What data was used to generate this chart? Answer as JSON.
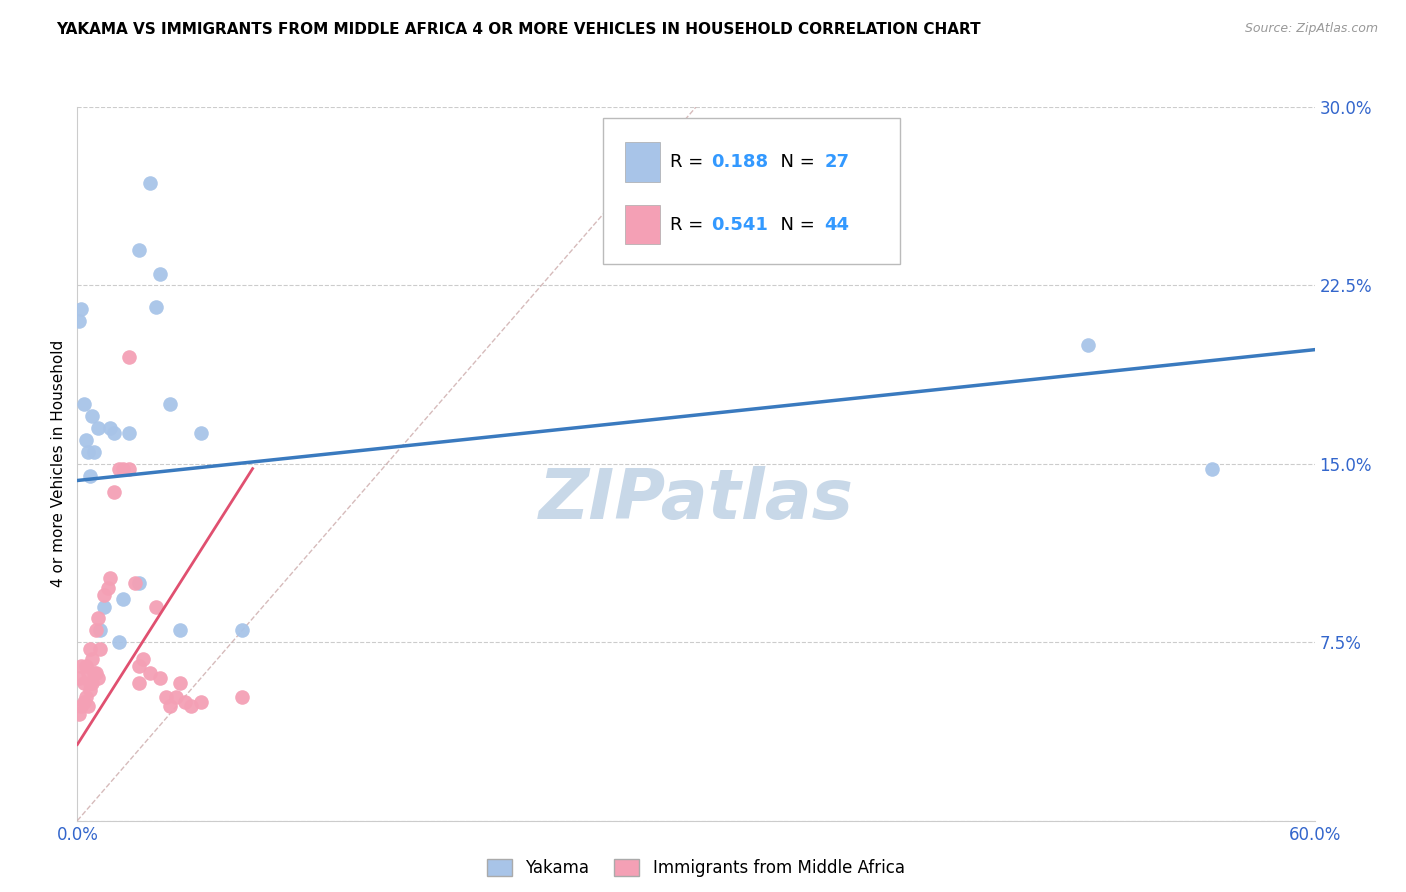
{
  "title": "YAKAMA VS IMMIGRANTS FROM MIDDLE AFRICA 4 OR MORE VEHICLES IN HOUSEHOLD CORRELATION CHART",
  "source": "Source: ZipAtlas.com",
  "ylabel": "4 or more Vehicles in Household",
  "xmin": 0.0,
  "xmax": 0.6,
  "ymin": 0.0,
  "ymax": 0.3,
  "xtick_positions": [
    0.0,
    0.6
  ],
  "xtick_labels": [
    "0.0%",
    "60.0%"
  ],
  "ytick_positions": [
    0.0,
    0.075,
    0.15,
    0.225,
    0.3
  ],
  "ytick_labels": [
    "",
    "7.5%",
    "15.0%",
    "22.5%",
    "30.0%"
  ],
  "legend1_label": "Yakama",
  "legend2_label": "Immigrants from Middle Africa",
  "series1": {
    "name": "Yakama",
    "dot_color": "#a8c4e8",
    "line_color": "#3a7abf",
    "R": 0.188,
    "N": 27,
    "x": [
      0.001,
      0.002,
      0.003,
      0.004,
      0.005,
      0.006,
      0.007,
      0.008,
      0.01,
      0.011,
      0.013,
      0.016,
      0.018,
      0.02,
      0.022,
      0.025,
      0.03,
      0.035,
      0.038,
      0.04,
      0.045,
      0.05,
      0.06,
      0.08,
      0.03,
      0.49,
      0.55
    ],
    "y": [
      0.21,
      0.215,
      0.175,
      0.16,
      0.155,
      0.145,
      0.17,
      0.155,
      0.165,
      0.08,
      0.09,
      0.165,
      0.163,
      0.075,
      0.093,
      0.163,
      0.24,
      0.268,
      0.216,
      0.23,
      0.175,
      0.08,
      0.163,
      0.08,
      0.1,
      0.2,
      0.148
    ]
  },
  "series2": {
    "name": "Immigrants from Middle Africa",
    "dot_color": "#f4a0b5",
    "line_color": "#e05070",
    "R": 0.541,
    "N": 44,
    "x": [
      0.001,
      0.001,
      0.002,
      0.002,
      0.003,
      0.003,
      0.004,
      0.004,
      0.005,
      0.005,
      0.006,
      0.006,
      0.006,
      0.007,
      0.007,
      0.008,
      0.009,
      0.009,
      0.01,
      0.01,
      0.011,
      0.013,
      0.015,
      0.016,
      0.018,
      0.02,
      0.022,
      0.025,
      0.025,
      0.028,
      0.03,
      0.03,
      0.032,
      0.035,
      0.038,
      0.04,
      0.043,
      0.045,
      0.048,
      0.05,
      0.052,
      0.055,
      0.06,
      0.08
    ],
    "y": [
      0.045,
      0.06,
      0.048,
      0.065,
      0.05,
      0.058,
      0.052,
      0.065,
      0.048,
      0.062,
      0.055,
      0.058,
      0.072,
      0.058,
      0.068,
      0.062,
      0.062,
      0.08,
      0.06,
      0.085,
      0.072,
      0.095,
      0.098,
      0.102,
      0.138,
      0.148,
      0.148,
      0.195,
      0.148,
      0.1,
      0.058,
      0.065,
      0.068,
      0.062,
      0.09,
      0.06,
      0.052,
      0.048,
      0.052,
      0.058,
      0.05,
      0.048,
      0.05,
      0.052
    ]
  },
  "blue_line_x0": 0.0,
  "blue_line_x1": 0.6,
  "blue_line_y0": 0.143,
  "blue_line_y1": 0.198,
  "pink_line_x0": 0.0,
  "pink_line_x1": 0.085,
  "pink_line_y0": 0.032,
  "pink_line_y1": 0.148,
  "diag_color": "#ccaaaa",
  "background_color": "#ffffff",
  "grid_color": "#cccccc",
  "watermark": "ZIPatlas",
  "watermark_color": "#c8d8e8",
  "legend_R_color": "#3399ff",
  "legend_N_color": "#3399ff"
}
